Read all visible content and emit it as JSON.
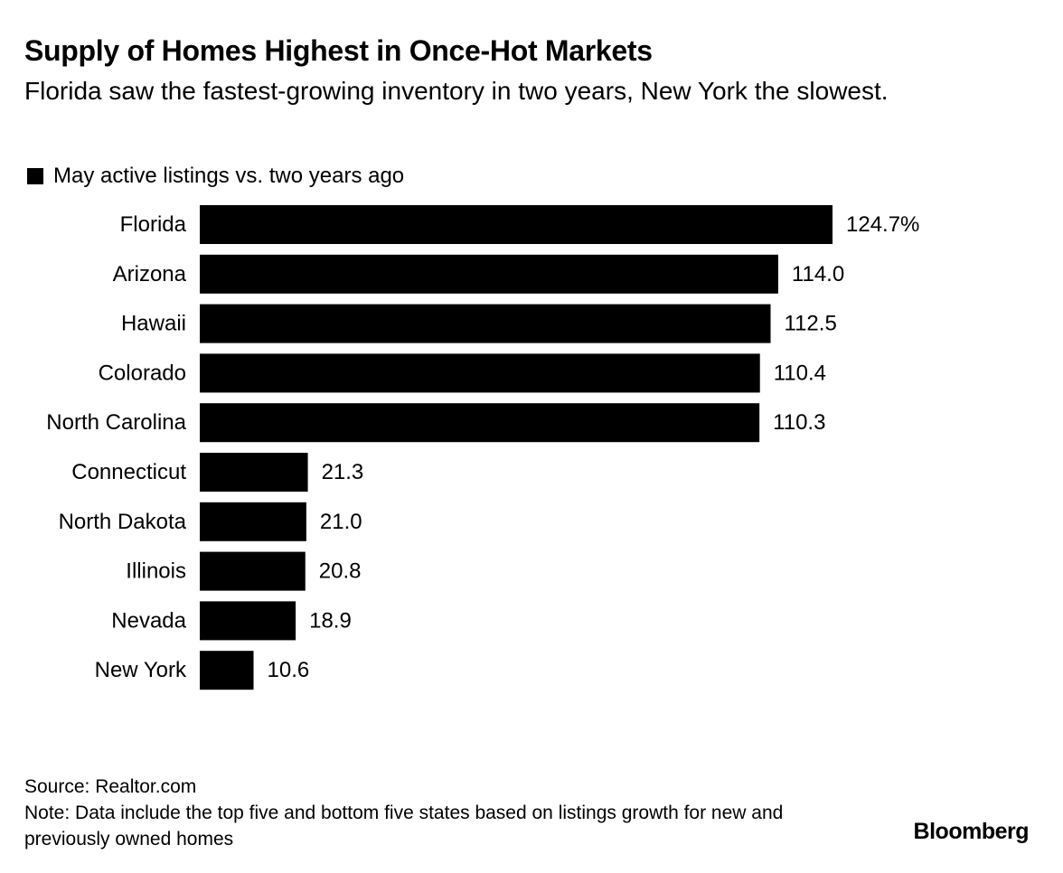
{
  "title": "Supply of Homes Highest in Once-Hot Markets",
  "subtitle": "Florida saw the fastest-growing inventory in two years, New York the slowest.",
  "legend": {
    "label": "May active listings vs. two years ago",
    "color": "#000000"
  },
  "footer": {
    "source": "Source: Realtor.com",
    "note": "Note: Data include the top five and bottom five states based on listings growth for new and previously owned homes",
    "brand": "Bloomberg"
  },
  "chart_data": {
    "type": "bar",
    "orientation": "horizontal",
    "title": "Supply of Homes Highest in Once-Hot Markets",
    "subtitle": "Florida saw the fastest-growing inventory in two years, New York the slowest.",
    "categories": [
      "Florida",
      "Arizona",
      "Hawaii",
      "Colorado",
      "North Carolina",
      "Connecticut",
      "North Dakota",
      "Illinois",
      "Nevada",
      "New York"
    ],
    "series": [
      {
        "name": "May active listings vs. two years ago",
        "values": [
          124.7,
          114.0,
          112.5,
          110.4,
          110.3,
          21.3,
          21.0,
          20.8,
          18.9,
          10.6
        ],
        "labels": [
          "124.7%",
          "114.0",
          "112.5",
          "110.4",
          "110.3",
          "21.3",
          "21.0",
          "20.8",
          "18.9",
          "10.6"
        ],
        "color": "#000000"
      }
    ],
    "unit": "%",
    "xlim": [
      0,
      124.7
    ],
    "grid": false,
    "legend_position": "top-left"
  }
}
